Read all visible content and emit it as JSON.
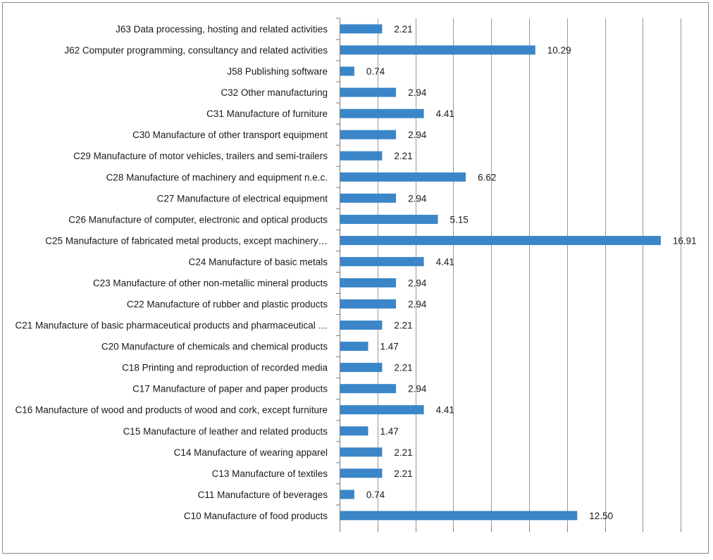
{
  "chart_data": {
    "type": "bar",
    "orientation": "horizontal",
    "title": "",
    "xlabel": "",
    "ylabel": "",
    "xlim": [
      0,
      18
    ],
    "grid": true,
    "legend": "none",
    "bar_color": "#3a86c8",
    "categories": [
      "J63 Data processing, hosting and related activities",
      "J62 Computer programming, consultancy and related activities",
      "J58 Publishing software",
      "C32 Other manufacturing",
      "C31 Manufacture of furniture",
      "C30 Manufacture of other transport equipment",
      "C29 Manufacture of motor vehicles, trailers and semi-trailers",
      "C28 Manufacture of machinery and equipment n.e.c.",
      "C27 Manufacture of electrical equipment",
      "C26 Manufacture of computer, electronic and optical products",
      "C25 Manufacture of fabricated metal products, except machinery…",
      "C24 Manufacture of basic metals",
      "C23 Manufacture of other non-metallic mineral products",
      "C22 Manufacture of rubber and plastic products",
      "C21 Manufacture of basic pharmaceutical products and pharmaceutical …",
      "C20 Manufacture of chemicals and chemical products",
      "C18 Printing and reproduction of recorded media",
      "C17 Manufacture of paper and paper products",
      "C16 Manufacture of wood and products of wood and cork, except furniture",
      "C15 Manufacture of leather and related products",
      "C14 Manufacture of wearing apparel",
      "C13 Manufacture of textiles",
      "C11 Manufacture of beverages",
      "C10 Manufacture of food products"
    ],
    "values": [
      2.21,
      10.29,
      0.74,
      2.94,
      4.41,
      2.94,
      2.21,
      6.62,
      2.94,
      5.15,
      16.91,
      4.41,
      2.94,
      2.94,
      2.21,
      1.47,
      2.21,
      2.94,
      4.41,
      1.47,
      2.21,
      2.21,
      0.74,
      12.5
    ],
    "value_labels": [
      "2.21",
      "10.29",
      "0.74",
      "2.94",
      "4.41",
      "2.94",
      "2.21",
      "6.62",
      "2.94",
      "5.15",
      "16.91",
      "4.41",
      "2.94",
      "2.94",
      "2.21",
      "1.47",
      "2.21",
      "2.94",
      "4.41",
      "1.47",
      "2.21",
      "2.21",
      "0.74",
      "12.50"
    ]
  }
}
